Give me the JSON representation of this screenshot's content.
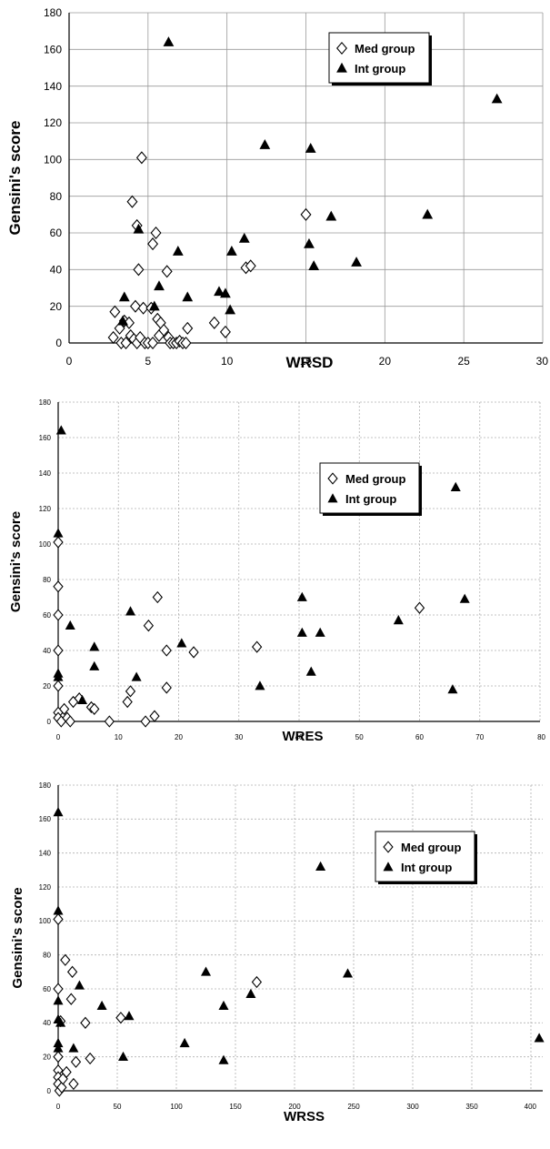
{
  "chart_data": [
    {
      "type": "scatter",
      "xlabel": "WRSD",
      "ylabel": "Gensini's score",
      "xlim": [
        0,
        30
      ],
      "ylim": [
        0,
        180
      ],
      "xticks": [
        "0",
        "5",
        "10",
        "15",
        "20",
        "25",
        "30"
      ],
      "yticks": [
        "0",
        "20",
        "40",
        "60",
        "80",
        "100",
        "120",
        "140",
        "160",
        "180"
      ],
      "grid": true,
      "legend_position": "top-right",
      "series": [
        {
          "name": "Med group",
          "marker": "open-diamond",
          "points": [
            [
              2.8,
              3
            ],
            [
              2.9,
              17
            ],
            [
              3.2,
              8
            ],
            [
              3.3,
              0
            ],
            [
              3.5,
              12
            ],
            [
              3.6,
              0
            ],
            [
              3.8,
              11
            ],
            [
              3.9,
              4
            ],
            [
              4.0,
              77
            ],
            [
              4.1,
              2
            ],
            [
              4.2,
              20
            ],
            [
              4.3,
              64
            ],
            [
              4.3,
              0
            ],
            [
              4.4,
              40
            ],
            [
              4.5,
              3
            ],
            [
              4.6,
              101
            ],
            [
              4.7,
              19
            ],
            [
              4.8,
              0
            ],
            [
              5.0,
              0
            ],
            [
              5.2,
              19
            ],
            [
              5.3,
              0
            ],
            [
              5.3,
              54
            ],
            [
              5.5,
              60
            ],
            [
              5.6,
              13
            ],
            [
              5.7,
              4
            ],
            [
              5.8,
              11
            ],
            [
              6.0,
              7
            ],
            [
              6.2,
              39
            ],
            [
              6.3,
              3
            ],
            [
              6.4,
              0
            ],
            [
              6.6,
              0
            ],
            [
              6.8,
              0
            ],
            [
              7.0,
              1
            ],
            [
              7.2,
              0
            ],
            [
              7.4,
              0
            ],
            [
              7.5,
              8
            ],
            [
              9.2,
              11
            ],
            [
              9.9,
              6
            ],
            [
              11.2,
              41
            ],
            [
              11.5,
              42
            ],
            [
              15.0,
              70
            ]
          ]
        },
        {
          "name": "Int group",
          "marker": "filled-triangle",
          "points": [
            [
              3.4,
              12
            ],
            [
              3.5,
              25
            ],
            [
              4.4,
              62
            ],
            [
              5.4,
              20
            ],
            [
              5.7,
              31
            ],
            [
              6.3,
              164
            ],
            [
              6.9,
              50
            ],
            [
              7.5,
              25
            ],
            [
              9.5,
              28
            ],
            [
              9.9,
              27
            ],
            [
              10.2,
              18
            ],
            [
              10.3,
              50
            ],
            [
              11.1,
              57
            ],
            [
              12.4,
              108
            ],
            [
              15.2,
              54
            ],
            [
              15.3,
              106
            ],
            [
              15.5,
              42
            ],
            [
              16.6,
              69
            ],
            [
              18.2,
              44
            ],
            [
              22.7,
              70
            ],
            [
              27.1,
              133
            ]
          ]
        }
      ]
    },
    {
      "type": "scatter",
      "xlabel": "WRES",
      "ylabel": "Gensini's score",
      "xlim": [
        0,
        80
      ],
      "ylim": [
        0,
        180
      ],
      "xticks": [
        "0",
        "10",
        "20",
        "30",
        "40",
        "50",
        "60",
        "70",
        "80"
      ],
      "yticks": [
        "0",
        "20",
        "40",
        "60",
        "80",
        "100",
        "120",
        "140",
        "160",
        "180"
      ],
      "grid": true,
      "legend_position": "top-right",
      "series": [
        {
          "name": "Med group",
          "marker": "open-diamond",
          "points": [
            [
              0,
              101
            ],
            [
              0,
              76
            ],
            [
              0,
              60
            ],
            [
              0,
              40
            ],
            [
              0,
              20
            ],
            [
              0,
              5
            ],
            [
              0,
              2
            ],
            [
              0.5,
              0
            ],
            [
              1,
              7
            ],
            [
              1.5,
              2
            ],
            [
              2,
              0
            ],
            [
              2.5,
              11
            ],
            [
              3.5,
              13
            ],
            [
              5.5,
              8
            ],
            [
              6,
              7
            ],
            [
              8.5,
              0
            ],
            [
              11.5,
              11
            ],
            [
              12,
              17
            ],
            [
              14.5,
              0
            ],
            [
              15,
              54
            ],
            [
              16,
              3
            ],
            [
              16.5,
              70
            ],
            [
              18,
              40
            ],
            [
              18,
              19
            ],
            [
              22.5,
              39
            ],
            [
              33,
              42
            ],
            [
              60,
              64
            ]
          ]
        },
        {
          "name": "Int group",
          "marker": "filled-triangle",
          "points": [
            [
              0.5,
              164
            ],
            [
              0,
              106
            ],
            [
              0,
              27
            ],
            [
              0,
              25
            ],
            [
              2,
              54
            ],
            [
              4,
              12
            ],
            [
              6,
              42
            ],
            [
              6,
              31
            ],
            [
              12,
              62
            ],
            [
              13,
              25
            ],
            [
              20.5,
              44
            ],
            [
              33.5,
              20
            ],
            [
              40.5,
              70
            ],
            [
              40.5,
              50
            ],
            [
              42,
              28
            ],
            [
              43.5,
              50
            ],
            [
              56.5,
              57
            ],
            [
              65.5,
              18
            ],
            [
              66,
              132
            ],
            [
              67.5,
              69
            ]
          ]
        }
      ]
    },
    {
      "type": "scatter",
      "xlabel": "WRSS",
      "ylabel": "Gensini's score",
      "xlim": [
        0,
        410
      ],
      "ylim": [
        0,
        180
      ],
      "xticks": [
        "0",
        "50",
        "100",
        "150",
        "200",
        "250",
        "300",
        "350",
        "400"
      ],
      "yticks": [
        "0",
        "20",
        "40",
        "60",
        "80",
        "100",
        "120",
        "140",
        "160",
        "180"
      ],
      "grid": true,
      "legend_position": "top-right",
      "series": [
        {
          "name": "Med group",
          "marker": "open-diamond",
          "points": [
            [
              0,
              101
            ],
            [
              0,
              60
            ],
            [
              0,
              20
            ],
            [
              0,
              12
            ],
            [
              0,
              8
            ],
            [
              0,
              4
            ],
            [
              1,
              0
            ],
            [
              2,
              41
            ],
            [
              3,
              2
            ],
            [
              4,
              7
            ],
            [
              6,
              77
            ],
            [
              7,
              11
            ],
            [
              11,
              54
            ],
            [
              12,
              70
            ],
            [
              13,
              4
            ],
            [
              15,
              17
            ],
            [
              23,
              40
            ],
            [
              27,
              19
            ],
            [
              53,
              43
            ],
            [
              168,
              64
            ]
          ]
        },
        {
          "name": "Int group",
          "marker": "filled-triangle",
          "points": [
            [
              0,
              164
            ],
            [
              0,
              106
            ],
            [
              0,
              53
            ],
            [
              0,
              42
            ],
            [
              0,
              28
            ],
            [
              0,
              25
            ],
            [
              2,
              40
            ],
            [
              13,
              25
            ],
            [
              18,
              62
            ],
            [
              37,
              50
            ],
            [
              55,
              20
            ],
            [
              60,
              44
            ],
            [
              107,
              28
            ],
            [
              125,
              70
            ],
            [
              140,
              50
            ],
            [
              140,
              18
            ],
            [
              163,
              57
            ],
            [
              222,
              132
            ],
            [
              245,
              69
            ],
            [
              407,
              31
            ]
          ]
        }
      ]
    }
  ]
}
